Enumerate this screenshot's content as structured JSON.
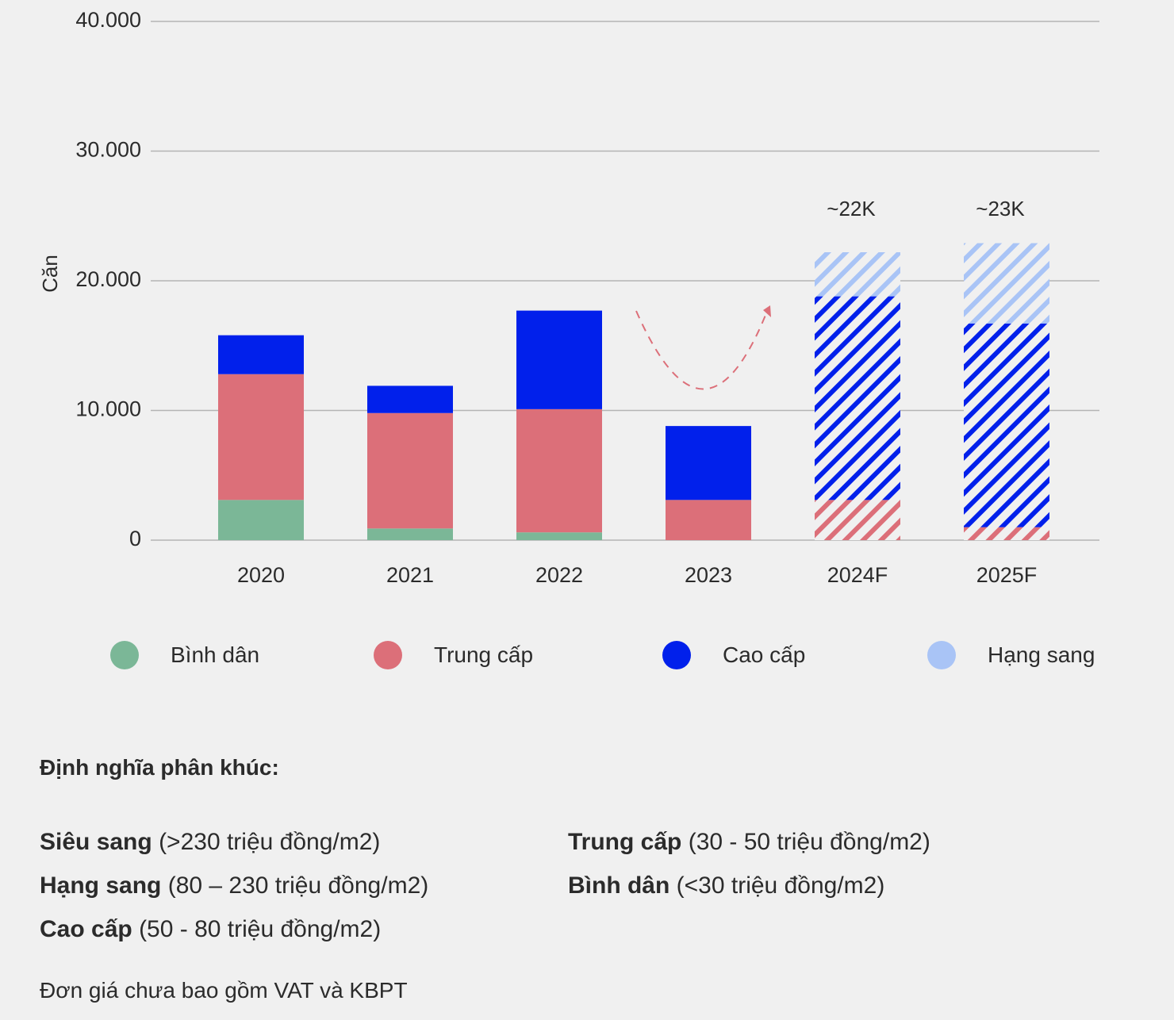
{
  "chart_data": {
    "type": "bar",
    "stacked": true,
    "ylabel": "Căn",
    "xlabel": "",
    "ylim": [
      0,
      40000
    ],
    "yticks": [
      "0",
      "10.000",
      "20.000",
      "30.000",
      "40.000"
    ],
    "ytick_values": [
      0,
      10000,
      20000,
      30000,
      40000
    ],
    "grid": true,
    "categories": [
      "2020",
      "2021",
      "2022",
      "2023",
      "2024F",
      "2025F"
    ],
    "forecast": [
      false,
      false,
      false,
      false,
      true,
      true
    ],
    "series": [
      {
        "name": "Bình dân",
        "color": "#7bb797",
        "values": [
          3100,
          900,
          600,
          0,
          0,
          0
        ]
      },
      {
        "name": "Trung cấp",
        "color": "#dc6f79",
        "values": [
          9700,
          8900,
          9500,
          3100,
          3100,
          1000
        ]
      },
      {
        "name": "Cao cấp",
        "color": "#0120eb",
        "values": [
          3000,
          2100,
          7600,
          5700,
          15700,
          15700
        ]
      },
      {
        "name": "Hạng sang",
        "color": "#a9c4f6",
        "values": [
          0,
          0,
          0,
          0,
          3400,
          6200
        ]
      }
    ],
    "annotations": [
      {
        "category": "2024F",
        "text": "~22K"
      },
      {
        "category": "2025F",
        "text": "~23K"
      }
    ],
    "legend_position": "bottom"
  },
  "definitions": {
    "title": "Định nghĩa phân khúc:",
    "items": [
      {
        "name": "Siêu sang",
        "range": "(>230 triệu đồng/m2)"
      },
      {
        "name": "Hạng sang",
        "range": "(80 – 230 triệu đồng/m2)"
      },
      {
        "name": "Cao cấp",
        "range": "(50 - 80 triệu đồng/m2)"
      },
      {
        "name": "Trung cấp",
        "range": "(30 - 50 triệu đồng/m2)"
      },
      {
        "name": "Bình dân",
        "range": "(<30 triệu đồng/m2)"
      }
    ],
    "note": "Đơn giá chưa bao gồm VAT và KBPT"
  }
}
